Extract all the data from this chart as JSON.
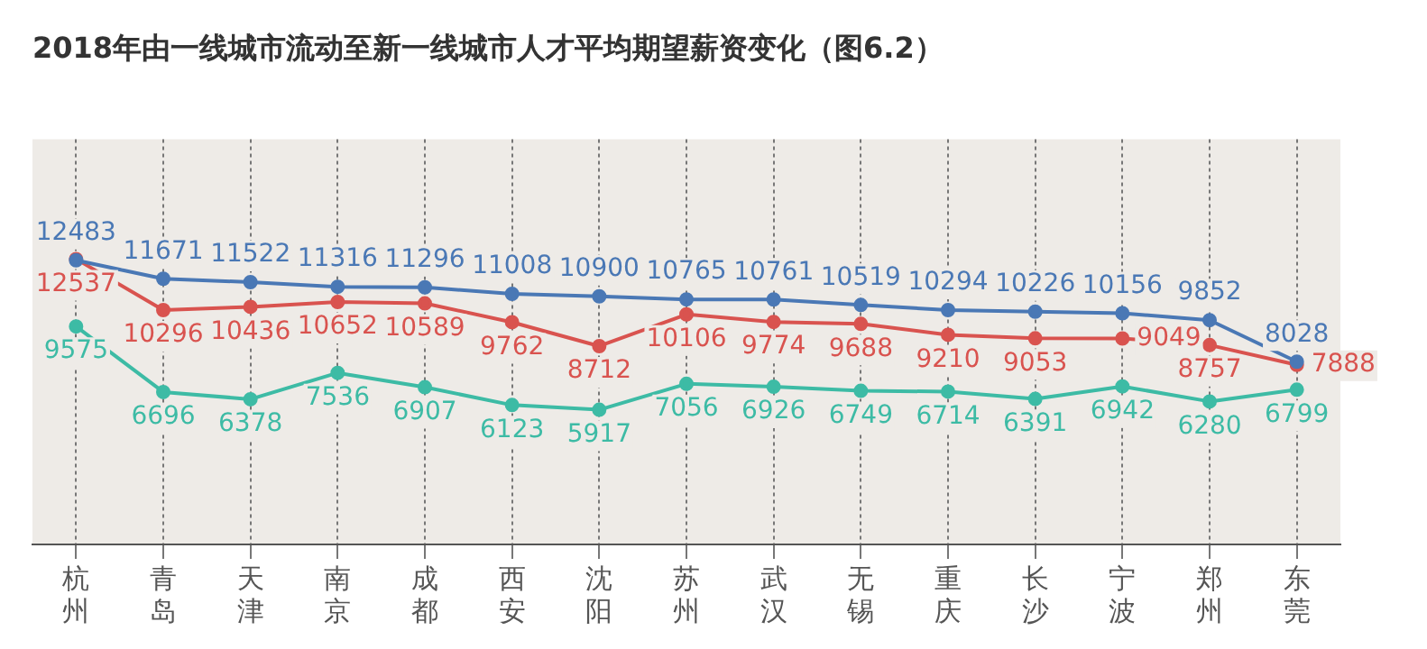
{
  "chart_data": {
    "type": "line",
    "title": "2018年由一线城市流动至新一线城市人才平均期望薪资变化（图6.2）",
    "categories": [
      "杭州",
      "青岛",
      "天津",
      "南京",
      "成都",
      "西安",
      "沈阳",
      "苏州",
      "武汉",
      "无锡",
      "重庆",
      "长沙",
      "宁波",
      "郑州",
      "东莞"
    ],
    "series": [
      {
        "color": "#4a78b5",
        "values": [
          12483,
          11671,
          11522,
          11316,
          11296,
          11008,
          10900,
          10765,
          10761,
          10519,
          10294,
          10226,
          10156,
          9852,
          8028
        ]
      },
      {
        "color": "#d9534f",
        "values": [
          12537,
          10296,
          10436,
          10652,
          10589,
          9762,
          8712,
          10106,
          9774,
          9688,
          9210,
          9053,
          9049,
          8757,
          7888
        ]
      },
      {
        "color": "#3dbba5",
        "values": [
          9575,
          6696,
          6378,
          7536,
          6907,
          6123,
          5917,
          7056,
          6926,
          6749,
          6714,
          6391,
          6942,
          6280,
          6799
        ]
      }
    ],
    "tick_labels": "x",
    "data_labels": true,
    "grid": "x",
    "marker": "circle",
    "line_style": "solid",
    "legend": false
  }
}
